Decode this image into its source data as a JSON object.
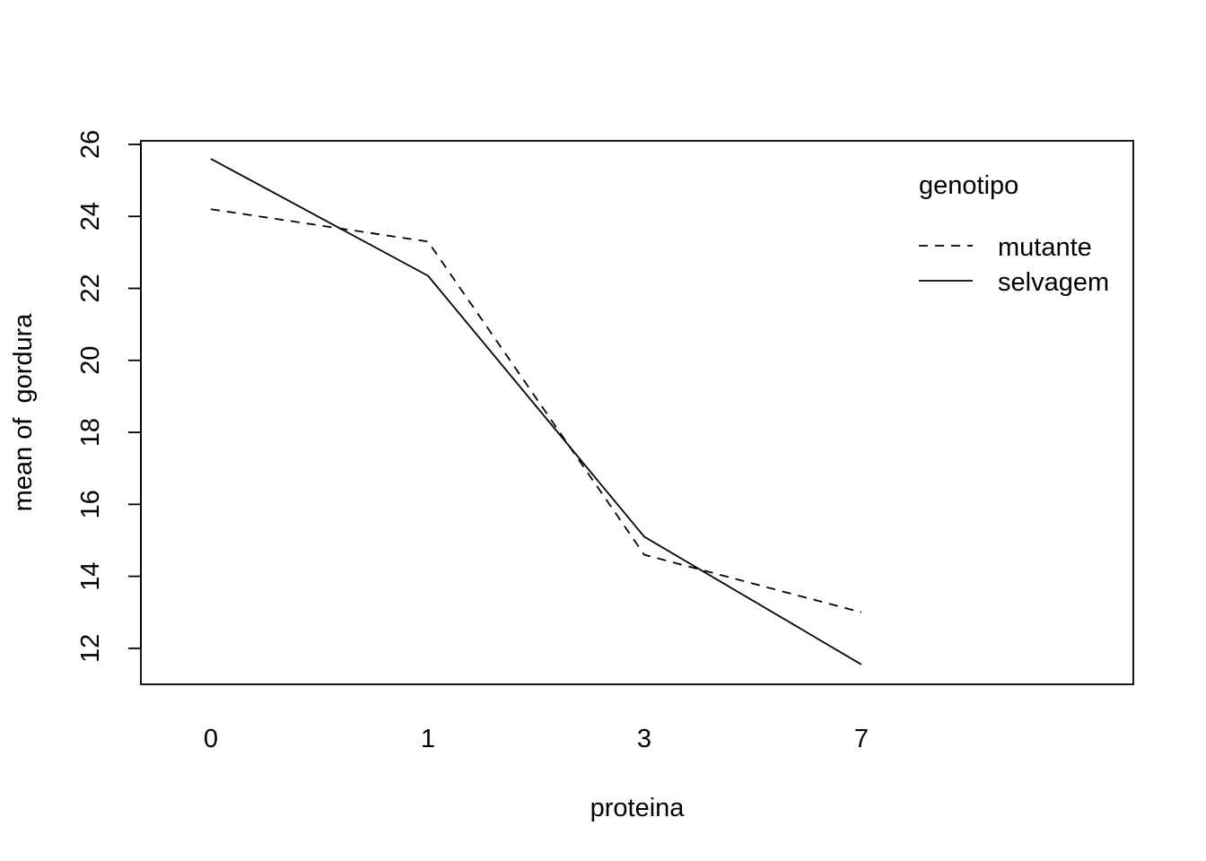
{
  "chart_data": {
    "type": "line",
    "title": "",
    "xlabel": "proteina",
    "ylabel": "mean of  gordura",
    "categories": [
      "0",
      "1",
      "3",
      "7"
    ],
    "ylim": [
      11,
      26.1
    ],
    "yticks": [
      "12",
      "14",
      "16",
      "18",
      "20",
      "22",
      "24",
      "26"
    ],
    "grid": false,
    "legend": {
      "title": "genotipo",
      "placement": "top-right",
      "entries": [
        "mutante",
        "selvagem"
      ]
    },
    "series": [
      {
        "name": "mutante",
        "values": [
          24.2,
          23.3,
          14.6,
          13.0
        ],
        "line_style": "dashed",
        "color": "#000000"
      },
      {
        "name": "selvagem",
        "values": [
          25.6,
          22.35,
          15.1,
          11.55
        ],
        "line_style": "solid",
        "color": "#000000"
      }
    ]
  }
}
